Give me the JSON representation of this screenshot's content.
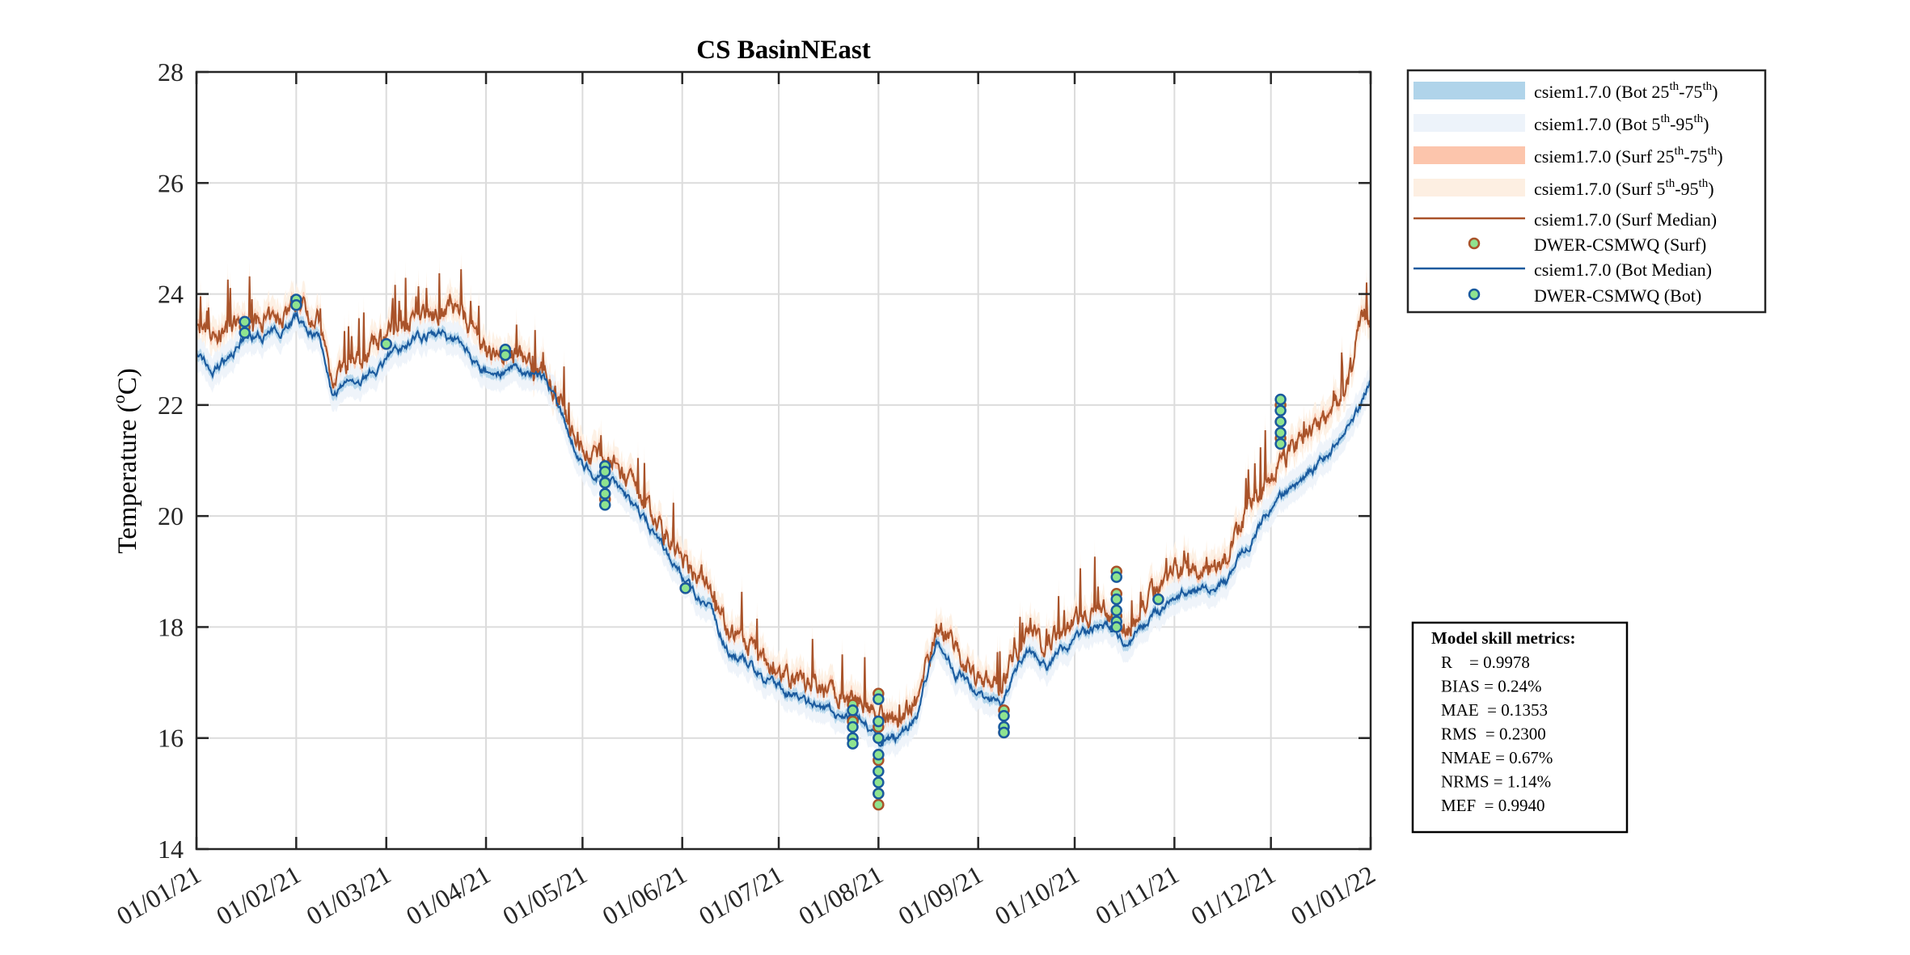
{
  "chart_data": {
    "type": "line",
    "title": "CS BasinNEast",
    "xlabel": "",
    "ylabel": "Temperature (°C)",
    "ylabel_parts": {
      "text": "Temperature (",
      "sup": "o",
      "unit": "C)"
    },
    "ylim": [
      14,
      28
    ],
    "yticks": [
      14,
      16,
      18,
      20,
      22,
      24,
      26,
      28
    ],
    "xlim_days": [
      0,
      365
    ],
    "xticks": [
      {
        "day": 0,
        "label": "01/01/21"
      },
      {
        "day": 31,
        "label": "01/02/21"
      },
      {
        "day": 59,
        "label": "01/03/21"
      },
      {
        "day": 90,
        "label": "01/04/21"
      },
      {
        "day": 120,
        "label": "01/05/21"
      },
      {
        "day": 151,
        "label": "01/06/21"
      },
      {
        "day": 181,
        "label": "01/07/21"
      },
      {
        "day": 212,
        "label": "01/08/21"
      },
      {
        "day": 243,
        "label": "01/09/21"
      },
      {
        "day": 273,
        "label": "01/10/21"
      },
      {
        "day": 304,
        "label": "01/11/21"
      },
      {
        "day": 334,
        "label": "01/12/21"
      },
      {
        "day": 365,
        "label": "01/01/22"
      }
    ],
    "grid": true,
    "legend_placement": "outside-top-right",
    "legend": [
      {
        "type": "band",
        "color": "#b0d4ea",
        "text": "csiem1.7.0 (Bot 25",
        "s1": "th",
        "mid": "-75",
        "s2": "th",
        "end": ")"
      },
      {
        "type": "band",
        "color": "#edf3fa",
        "text": "csiem1.7.0 (Bot 5",
        "s1": "th",
        "mid": "-95",
        "s2": "th",
        "end": ")"
      },
      {
        "type": "band",
        "color": "#fcc5ac",
        "text": "csiem1.7.0 (Surf 25",
        "s1": "th",
        "mid": "-75",
        "s2": "th",
        "end": ")"
      },
      {
        "type": "band",
        "color": "#fdefe2",
        "text": "csiem1.7.0 (Surf 5",
        "s1": "th",
        "mid": "-95",
        "s2": "th",
        "end": ")"
      },
      {
        "type": "line",
        "color": "#a9532a",
        "text": "csiem1.7.0 (Surf Median)"
      },
      {
        "type": "marker",
        "color": "#a9532a",
        "text": "DWER-CSMWQ (Surf)"
      },
      {
        "type": "line",
        "color": "#1a5a9e",
        "text": "csiem1.7.0 (Bot Median)"
      },
      {
        "type": "marker",
        "color": "#1a5a9e",
        "text": "DWER-CSMWQ (Bot)"
      }
    ],
    "series": [
      {
        "name": "csiem1.7.0 (Bot Median)",
        "color": "#1a5a9e",
        "anchors_day": [
          0,
          5,
          15,
          25,
          31,
          38,
          42,
          50,
          59,
          68,
          75,
          82,
          90,
          100,
          108,
          115,
          120,
          130,
          140,
          151,
          160,
          165,
          172,
          181,
          192,
          200,
          207,
          212,
          218,
          224,
          230,
          236,
          243,
          250,
          258,
          265,
          273,
          282,
          290,
          298,
          304,
          312,
          320,
          326,
          334,
          342,
          350,
          357,
          362,
          365
        ],
        "anchors_value": [
          23.0,
          22.6,
          23.2,
          23.3,
          23.6,
          23.2,
          22.2,
          22.4,
          22.8,
          23.2,
          23.3,
          23.1,
          22.6,
          22.6,
          22.5,
          21.6,
          20.9,
          20.6,
          19.9,
          18.9,
          18.3,
          17.6,
          17.3,
          16.9,
          16.6,
          16.4,
          16.4,
          15.9,
          16.0,
          16.4,
          17.8,
          17.2,
          16.8,
          16.6,
          17.6,
          17.3,
          17.8,
          18.0,
          17.7,
          18.2,
          18.6,
          18.7,
          18.8,
          19.4,
          20.2,
          20.6,
          21.0,
          21.5,
          22.0,
          22.4
        ]
      },
      {
        "name": "csiem1.7.0 (Surf Median)",
        "color": "#a9532a",
        "anchors_day": [
          0,
          5,
          15,
          25,
          31,
          38,
          42,
          50,
          59,
          68,
          75,
          82,
          90,
          100,
          108,
          115,
          120,
          130,
          140,
          151,
          160,
          165,
          172,
          181,
          192,
          200,
          207,
          212,
          218,
          224,
          230,
          236,
          243,
          250,
          258,
          265,
          273,
          282,
          290,
          298,
          304,
          312,
          320,
          326,
          334,
          342,
          350,
          357,
          362,
          365
        ],
        "anchors_value": [
          23.3,
          23.2,
          23.5,
          23.5,
          23.9,
          23.5,
          22.5,
          22.8,
          23.3,
          23.6,
          23.7,
          23.7,
          22.9,
          22.9,
          22.6,
          21.8,
          21.2,
          20.9,
          20.2,
          19.2,
          18.7,
          18.0,
          17.6,
          17.2,
          16.9,
          16.8,
          16.7,
          16.4,
          16.3,
          16.7,
          18.0,
          17.6,
          17.1,
          17.0,
          17.9,
          17.7,
          18.1,
          18.3,
          18.0,
          18.7,
          19.0,
          19.0,
          19.2,
          20.0,
          20.8,
          21.3,
          21.7,
          22.2,
          23.5,
          23.4
        ]
      }
    ],
    "observations": [
      {
        "name": "DWER-CSMWQ (Surf)",
        "edge": "#a9532a",
        "fill": "#8fe38f",
        "points": [
          [
            15,
            23.4
          ],
          [
            31,
            23.8
          ],
          [
            59,
            23.1
          ],
          [
            96,
            22.9
          ],
          [
            127,
            20.9
          ],
          [
            127,
            20.6
          ],
          [
            127,
            20.3
          ],
          [
            152,
            18.7
          ],
          [
            204,
            16.6
          ],
          [
            204,
            16.3
          ],
          [
            212,
            16.8
          ],
          [
            212,
            16.2
          ],
          [
            212,
            15.6
          ],
          [
            212,
            15.0
          ],
          [
            212,
            14.8
          ],
          [
            251,
            16.5
          ],
          [
            251,
            16.1
          ],
          [
            286,
            19.0
          ],
          [
            286,
            18.6
          ],
          [
            286,
            18.2
          ],
          [
            299,
            18.5
          ],
          [
            337,
            22.0
          ],
          [
            337,
            21.7
          ],
          [
            337,
            21.4
          ]
        ]
      },
      {
        "name": "DWER-CSMWQ (Bot)",
        "edge": "#1a5a9e",
        "fill": "#8fe38f",
        "points": [
          [
            15,
            23.5
          ],
          [
            15,
            23.3
          ],
          [
            31,
            23.9
          ],
          [
            31,
            23.8
          ],
          [
            59,
            23.1
          ],
          [
            96,
            23.0
          ],
          [
            96,
            22.9
          ],
          [
            127,
            20.9
          ],
          [
            127,
            20.8
          ],
          [
            127,
            20.6
          ],
          [
            127,
            20.4
          ],
          [
            127,
            20.2
          ],
          [
            152,
            18.7
          ],
          [
            204,
            16.5
          ],
          [
            204,
            16.2
          ],
          [
            204,
            16.0
          ],
          [
            204,
            15.9
          ],
          [
            212,
            16.7
          ],
          [
            212,
            16.3
          ],
          [
            212,
            16.0
          ],
          [
            212,
            15.7
          ],
          [
            212,
            15.4
          ],
          [
            212,
            15.2
          ],
          [
            212,
            15.0
          ],
          [
            251,
            16.4
          ],
          [
            251,
            16.2
          ],
          [
            251,
            16.1
          ],
          [
            286,
            18.9
          ],
          [
            286,
            18.5
          ],
          [
            286,
            18.3
          ],
          [
            286,
            18.1
          ],
          [
            286,
            18.0
          ],
          [
            299,
            18.5
          ],
          [
            337,
            22.1
          ],
          [
            337,
            21.9
          ],
          [
            337,
            21.7
          ],
          [
            337,
            21.5
          ],
          [
            337,
            21.3
          ]
        ]
      }
    ],
    "band_colors": {
      "bot_25_75": "#b0d4ea",
      "bot_5_95": "#edf3fa",
      "surf_25_75": "#fcc5ac",
      "surf_5_95": "#fdefe2"
    }
  },
  "metrics": {
    "title": "Model skill metrics:",
    "lines": [
      "R    = 0.9978",
      "BIAS = 0.24%",
      "MAE  = 0.1353",
      "RMS  = 0.2300",
      "NMAE = 0.67%",
      "NRMS = 1.14%",
      "MEF  = 0.9940"
    ]
  }
}
